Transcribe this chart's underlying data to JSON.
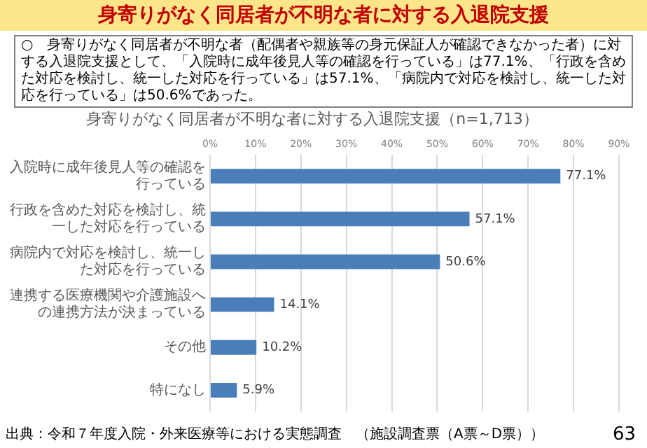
{
  "chart_data": {
    "type": "bar",
    "orientation": "horizontal",
    "title": "身寄りがなく同居者が不明な者に対する入退院支援",
    "subtitle": "身寄りがなく同居者が不明な者に対する入退院支援（n=1,713）",
    "categories": [
      "入院時に成年後見人等の確認を行っている",
      "行政を含めた対応を検討し、統一した対応を行っている",
      "病院内で対応を検討し、統一した対応を行っている",
      "連携する医療機関や介護施設への連携方法が決まっている",
      "その他",
      "特になし"
    ],
    "values": [
      77.1,
      57.1,
      50.6,
      14.1,
      10.2,
      5.9
    ],
    "value_labels": [
      "77.1%",
      "57.1%",
      "50.6%",
      "14.1%",
      "10.2%",
      "5.9%"
    ],
    "color": "#4a7ebb",
    "xlim": [
      0,
      90
    ],
    "xticks": [
      {
        "value": 0,
        "label": "0%"
      },
      {
        "value": 10,
        "label": "10%"
      },
      {
        "value": 20,
        "label": "20%"
      },
      {
        "value": 30,
        "label": "30%"
      },
      {
        "value": 40,
        "label": "40%"
      },
      {
        "value": 50,
        "label": "50%"
      },
      {
        "value": 60,
        "label": "60%"
      },
      {
        "value": 70,
        "label": "70%"
      },
      {
        "value": 80,
        "label": "80%"
      },
      {
        "value": 90,
        "label": "90%"
      }
    ],
    "grid": "x",
    "legend": false,
    "annotations": [
      "○　身寄りがなく同居者が不明な者（配偶者や親族等の身元保証人が確認できなかった者）に対する入退院支援として、「入院時に成年後見人等の確認を行っている」は77.1%、「行政を含めた対応を検討し、統一した対応を行っている」は57.1%、「病院内で対応を検討し、統一した対応を行っている」は50.6%であった。",
      "出典：令和７年度入院・外来医療等における実態調査　（施設調査票（A票～D票））",
      "63"
    ]
  }
}
